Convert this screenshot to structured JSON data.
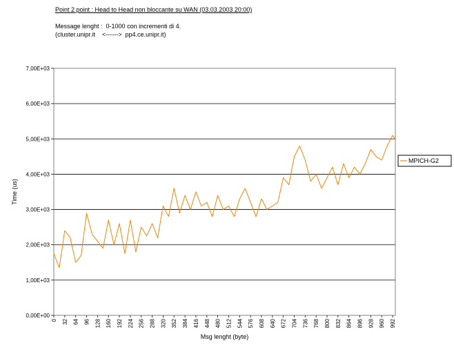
{
  "header": {
    "title": "Point 2 point : Head to Head non bloccante su WAN (03.03.2003 20:00)",
    "line1": "Message lenght :  0-1000 con incrementi di 4.",
    "line2": "(cluster.unipr.it    <------>  pp4.ce.unipr.it)"
  },
  "chart_data": {
    "type": "line",
    "title": "Point 2 point : Head to Head non bloccante su WAN (03.03.2003 20:00)",
    "xlabel": "Msg lenght (byte)",
    "ylabel": "Time (us)",
    "ylim": [
      0,
      7000
    ],
    "xlim": [
      0,
      1000
    ],
    "y_ticks": [
      0,
      1000,
      2000,
      3000,
      4000,
      5000,
      6000,
      7000
    ],
    "y_tick_labels": [
      "0,00E+00",
      "1,00E+03",
      "2,00E+03",
      "3,00E+03",
      "4,00E+03",
      "5,00E+03",
      "6,00E+03",
      "7,00E+03"
    ],
    "x_tick_labels": [
      "0",
      "32",
      "64",
      "96",
      "128",
      "160",
      "192",
      "224",
      "256",
      "288",
      "320",
      "352",
      "384",
      "416",
      "448",
      "480",
      "512",
      "544",
      "576",
      "608",
      "640",
      "672",
      "704",
      "736",
      "768",
      "800",
      "832",
      "864",
      "896",
      "928",
      "960",
      "992"
    ],
    "grid": true,
    "legend_position": "right",
    "series": [
      {
        "name": "MPICH-G2",
        "color": "#ff8000",
        "x": [
          0,
          16,
          32,
          48,
          64,
          80,
          96,
          112,
          128,
          144,
          160,
          176,
          192,
          208,
          224,
          240,
          256,
          272,
          288,
          304,
          320,
          336,
          352,
          368,
          384,
          400,
          416,
          432,
          448,
          464,
          480,
          496,
          512,
          528,
          544,
          560,
          576,
          592,
          608,
          624,
          640,
          656,
          672,
          688,
          704,
          720,
          736,
          752,
          768,
          784,
          800,
          816,
          832,
          848,
          864,
          880,
          896,
          912,
          928,
          944,
          960,
          976,
          992,
          1000
        ],
        "values": [
          1750,
          1350,
          2400,
          2200,
          1500,
          1700,
          2900,
          2300,
          2100,
          1900,
          2700,
          2000,
          2600,
          1750,
          2700,
          1800,
          2500,
          2250,
          2600,
          2200,
          3100,
          2800,
          3600,
          2900,
          3400,
          3000,
          3500,
          3100,
          3200,
          2800,
          3400,
          3000,
          3100,
          2800,
          3300,
          3600,
          3200,
          2800,
          3300,
          3000,
          3100,
          3200,
          3900,
          3700,
          4500,
          4800,
          4400,
          3800,
          4000,
          3600,
          3900,
          4200,
          3700,
          4300,
          3900,
          4200,
          4000,
          4300,
          4700,
          4500,
          4400,
          4800,
          5100,
          5000
        ]
      }
    ]
  }
}
